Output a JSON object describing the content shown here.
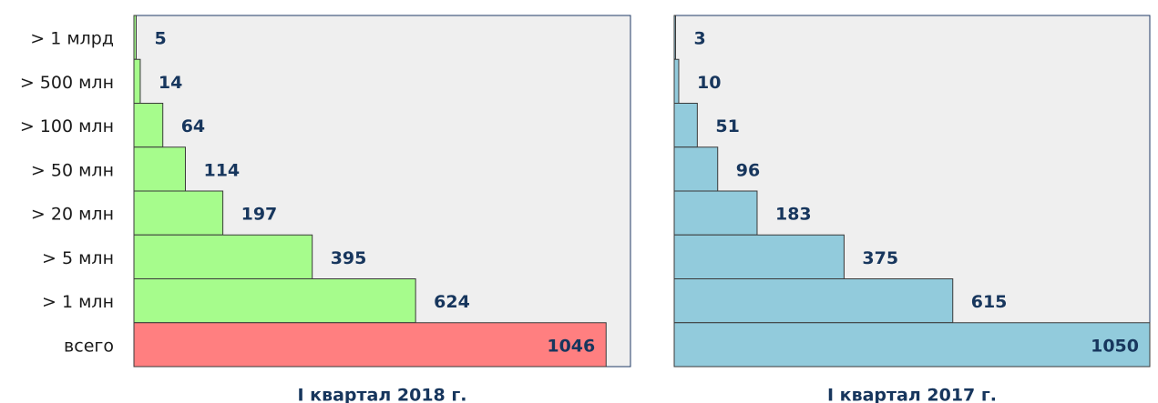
{
  "chart_data": [
    {
      "type": "barh",
      "title": "I квартал 2018 г.",
      "categories": [
        "> 1 млрд",
        "> 500 млн",
        "> 100 млн",
        "> 50 млн",
        "> 20 млн",
        "> 5 млн",
        "> 1 млн",
        "всего"
      ],
      "values": [
        5,
        14,
        64,
        114,
        197,
        395,
        624,
        1046
      ],
      "colors": [
        "#a6fc8c",
        "#a6fc8c",
        "#a6fc8c",
        "#a6fc8c",
        "#a6fc8c",
        "#a6fc8c",
        "#a6fc8c",
        "#ff7f80"
      ],
      "xlim": [
        0,
        1100
      ]
    },
    {
      "type": "barh",
      "title": "I квартал 2017 г.",
      "values": [
        3,
        10,
        51,
        96,
        183,
        375,
        615,
        1050
      ],
      "colors": [
        "#92cbdc",
        "#92cbdc",
        "#92cbdc",
        "#92cbdc",
        "#92cbdc",
        "#92cbdc",
        "#92cbdc",
        "#92cbdc"
      ],
      "xlim": [
        0,
        1050
      ]
    }
  ]
}
